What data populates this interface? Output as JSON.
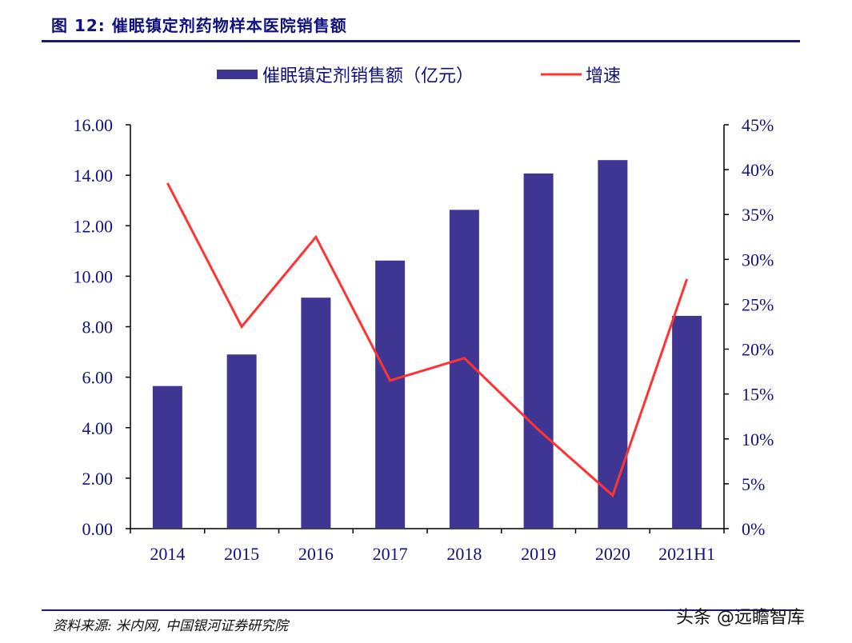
{
  "figure_title": "图 12: 催眠镇定剂药物样本医院销售额",
  "source_note": "资料来源: 米内网, 中国银河证券研究院",
  "watermark": "头条 @远瞻智库",
  "chart_data": {
    "type": "bar+line",
    "categories": [
      "2014",
      "2015",
      "2016",
      "2017",
      "2018",
      "2019",
      "2020",
      "2021H1"
    ],
    "series": [
      {
        "name": "催眠镇定剂销售额（亿元）",
        "type": "bar",
        "axis": "left",
        "color": "#3f3693",
        "values": [
          5.65,
          6.9,
          9.15,
          10.62,
          12.63,
          14.07,
          14.6,
          8.43
        ]
      },
      {
        "name": "增速",
        "type": "line",
        "axis": "right",
        "color": "#ff3333",
        "values": [
          38.5,
          22.5,
          32.5,
          16.5,
          19.0,
          11.0,
          3.7,
          27.8
        ]
      }
    ],
    "y_left": {
      "min": 0,
      "max": 16,
      "step": 2,
      "tick_labels": [
        "0.00",
        "2.00",
        "4.00",
        "6.00",
        "8.00",
        "10.00",
        "12.00",
        "14.00",
        "16.00"
      ]
    },
    "y_right": {
      "min": 0,
      "max": 45,
      "step": 5,
      "tick_labels": [
        "0%",
        "5%",
        "10%",
        "15%",
        "20%",
        "25%",
        "30%",
        "35%",
        "40%",
        "45%"
      ]
    },
    "legend_position": "top",
    "grid": false
  }
}
